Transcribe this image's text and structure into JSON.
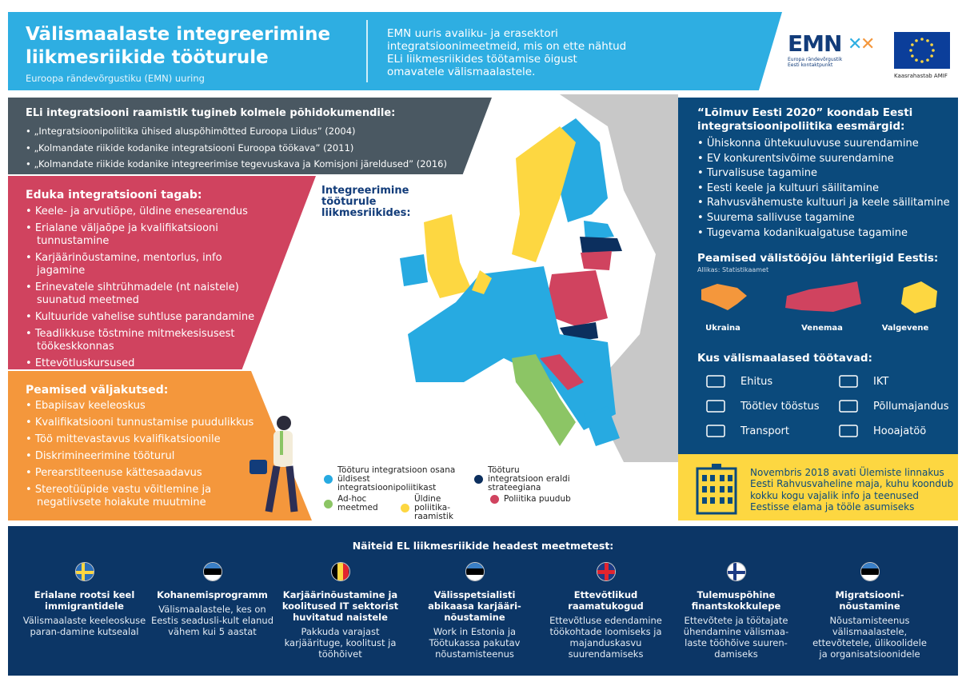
{
  "header": {
    "title_line1": "Välismaalaste integreerimine",
    "title_line2": "liikmesriikide tööturule",
    "subtitle": "Euroopa rändevõrgustiku (EMN) uuring",
    "intro": "EMN uuris avaliku- ja erasektori integratsioonimeetmeid, mis on ette nähtud ELi liikmesriikides töötamise õigust omavatele välismaalastele."
  },
  "logos": {
    "emn": "EMN",
    "emn_sub1": "Europa rändevõrgustik",
    "emn_sub2": "Eesti kontaktpunkt",
    "eu_caption": "Kaasrahastab AMIF"
  },
  "framework": {
    "title": "ELi integratsiooni raamistik tugineb kolmele põhidokumendile:",
    "items": [
      "„Integratsioonipoliitika ühised aluspõhimõtted Euroopa Liidus” (2004)",
      "„Kolmandate riikide kodanike integratsiooni Euroopa töökava” (2011)",
      "„Kolmandate riikide kodanike integreerimise tegevuskava ja Komisjoni järeldused” (2016)"
    ]
  },
  "success": {
    "title": "Eduka integratsiooni tagab:",
    "items": [
      "Keele- ja arvutiõpe, üldine enesearendus",
      "Erialane väljaõpe ja kvalifikatsiooni tunnustamine",
      "Karjäärinõustamine, mentorlus, info jagamine",
      "Erinevatele sihtrühmadele (nt naistele) suunatud meetmed",
      "Kultuuride vahelise suhtluse parandamine",
      "Teadlikkuse tõstmine mitmekesisusest töökeskkonnas",
      "Ettevõtluskursused"
    ]
  },
  "challenges": {
    "title": "Peamised väljakutsed:",
    "items": [
      "Ebapiisav keeleoskus",
      "Kvalifikatsiooni tunnustamise puudulikkus",
      "Töö mittevastavus kvalifikatsioonile",
      "Diskrimineerimine tööturul",
      "Perearstiteenuse kättesaadavus",
      "Stereotüüpide vastu võitlemine ja negatiivsete hoiakute muutmine"
    ]
  },
  "map": {
    "heading": "Integreerimine tööturule liikmesriikides:",
    "legend": [
      {
        "label": "Tööturu integratsioon osana üldisest integratsioonipoliitikast",
        "color": "#27aae1"
      },
      {
        "label": "Tööturu integratsioon eraldi strateegiana",
        "color": "#0c2f5e"
      },
      {
        "label": "Ad-hoc meetmed",
        "color": "#8cc565"
      },
      {
        "label": "Üldine poliitika-raamistik",
        "color": "#fdd741"
      },
      {
        "label": "Poliitika puudub",
        "color": "#d0435f"
      }
    ]
  },
  "estonia": {
    "goals_title": "“Lõimuv Eesti 2020” koondab Eesti integratsioonipoliitika eesmärgid:",
    "goals": [
      "Ühiskonna ühtekuuluvuse suurendamine",
      "EV konkurentsivõime suurendamine",
      "Turvalisuse tagamine",
      "Eesti keele ja kultuuri säilitamine",
      "Rahvusvähemuste kultuuri ja keele säilitamine",
      "Suurema sallivuse tagamine",
      "Tugevama kodanikualgatuse tagamine"
    ],
    "sources_title": "Peamised välistööjõu lähteriigid Eestis:",
    "source": "Allikas: Statistikaamet",
    "countries": [
      {
        "name": "Ukraina",
        "color": "#f4973c"
      },
      {
        "name": "Venemaa",
        "color": "#d0435f"
      },
      {
        "name": "Valgevene",
        "color": "#fdd741"
      }
    ],
    "work_title": "Kus välismaalased töötavad:",
    "sectors": [
      {
        "label": "Ehitus",
        "icon": "bricks-icon"
      },
      {
        "label": "IKT",
        "icon": "monitor-icon"
      },
      {
        "label": "Töötlev tööstus",
        "icon": "conveyor-icon"
      },
      {
        "label": "Põllumajandus",
        "icon": "crops-icon"
      },
      {
        "label": "Transport",
        "icon": "bus-icon"
      },
      {
        "label": "Hooajatöö",
        "icon": "seasons-icon"
      }
    ]
  },
  "notice": "Novembris 2018 avati Ülemiste linnakus Eesti Rahvusvaheline maja, kuhu koondub kokku kogu vajalik info ja teenused Eestisse elama ja tööle asumiseks",
  "examples": {
    "title": "Näiteid EL liikmesriikide headest meetmetest:",
    "items": [
      {
        "flag": "sweden",
        "title": "Erialane rootsi keel immigrantidele",
        "text": "Välismaalaste keeleoskuse paran-damine kutsealal"
      },
      {
        "flag": "estonia",
        "title": "Kohanemisprogramm",
        "text": "Välismaalastele, kes on Eestis seadusli-kult elanud vähem kui 5 aastat"
      },
      {
        "flag": "belgium",
        "title": "Karjäärinõustamine ja koolitused IT sektorist huvitatud naistele",
        "text": "Pakkuda varajast karjäärituge, koolitust ja tööhõivet"
      },
      {
        "flag": "estonia",
        "title": "Välisspetsialisti abikaasa karjääri-nõustamine",
        "text": "Work in Estonia ja Töötukassa pakutav nõustamisteenus"
      },
      {
        "flag": "uk",
        "title": "Ettevõtlikud raamatukogud",
        "text": "Ettevõtluse edendamine töökohtade loomiseks ja majanduskasvu suurendamiseks"
      },
      {
        "flag": "finland",
        "title": "Tulemuspõhine finantskokkulepe",
        "text": "Ettevõtete ja töötajate ühendamine välismaa-laste tööhõive suuren-damiseks"
      },
      {
        "flag": "estonia",
        "title": "Migratsiooni-nõustamine",
        "text": "Nõustamisteenus välismaalastele, ettevõtetele, ülikoolidele ja organisatsioonidele"
      }
    ]
  }
}
